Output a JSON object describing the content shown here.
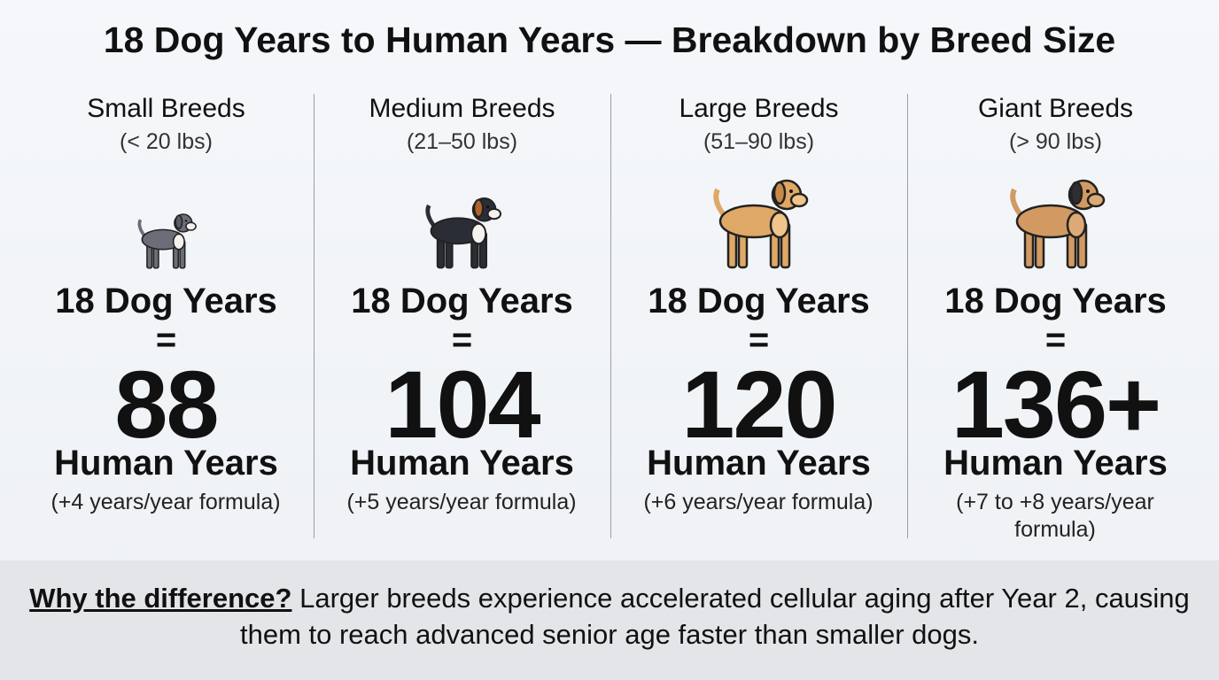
{
  "header": {
    "title": "18 Dog Years to Human Years — Breakdown by Breed Size"
  },
  "columns": [
    {
      "name": "Small Breeds",
      "weight": "(< 20 lbs)",
      "dog_years": "18 Dog Years",
      "equals": "=",
      "human_age": "88",
      "unit": "Human Years",
      "formula": "(+4 years/year formula)"
    },
    {
      "name": "Medium Breeds",
      "weight": "(21–50 lbs)",
      "dog_years": "18 Dog Years",
      "equals": "=",
      "human_age": "104",
      "unit": "Human Years",
      "formula": "(+5 years/year formula)"
    },
    {
      "name": "Large Breeds",
      "weight": "(51–90 lbs)",
      "dog_years": "18 Dog Years",
      "equals": "=",
      "human_age": "120",
      "unit": "Human Years",
      "formula": "(+6 years/year formula)"
    },
    {
      "name": "Giant Breeds",
      "weight": "(> 90 lbs)",
      "dog_years": "18 Dog Years",
      "equals": "=",
      "human_age": "136+",
      "unit": "Human Years",
      "formula": "(+7 to +8 years/year formula)"
    }
  ],
  "footer": {
    "lead": "Why the difference?",
    "text": "Larger breeds experience accelerated cellular aging after Year 2, causing them to reach advanced senior age faster than smaller dogs."
  }
}
